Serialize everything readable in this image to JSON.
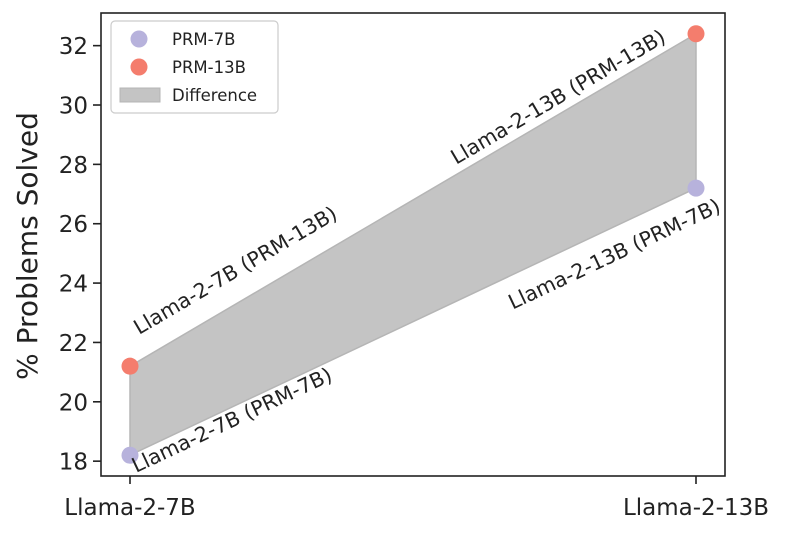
{
  "chart_data": {
    "type": "scatter",
    "categories": [
      "Llama-2-7B",
      "Llama-2-13B"
    ],
    "series": [
      {
        "name": "PRM-7B",
        "values": [
          18.2,
          27.2
        ],
        "color": "#b7b2dc"
      },
      {
        "name": "PRM-13B",
        "values": [
          21.2,
          32.4
        ],
        "color": "#f47d6d"
      }
    ],
    "fill": {
      "name": "Difference",
      "color": "#c4c4c4"
    },
    "ylabel": "% Problems Solved",
    "xlabel": "",
    "ylim": [
      17.5,
      33.1
    ],
    "yticks": [
      18,
      20,
      22,
      24,
      26,
      28,
      30,
      32
    ],
    "grid": false,
    "legend_position": "top-left",
    "annotations": [
      {
        "text": "Llama-2-7B (PRM-7B)",
        "category": 0,
        "series": 0
      },
      {
        "text": "Llama-2-7B (PRM-13B)",
        "category": 0,
        "series": 1
      },
      {
        "text": "Llama-2-13B (PRM-7B)",
        "category": 1,
        "series": 0
      },
      {
        "text": "Llama-2-13B (PRM-13B)",
        "category": 1,
        "series": 1
      }
    ]
  }
}
